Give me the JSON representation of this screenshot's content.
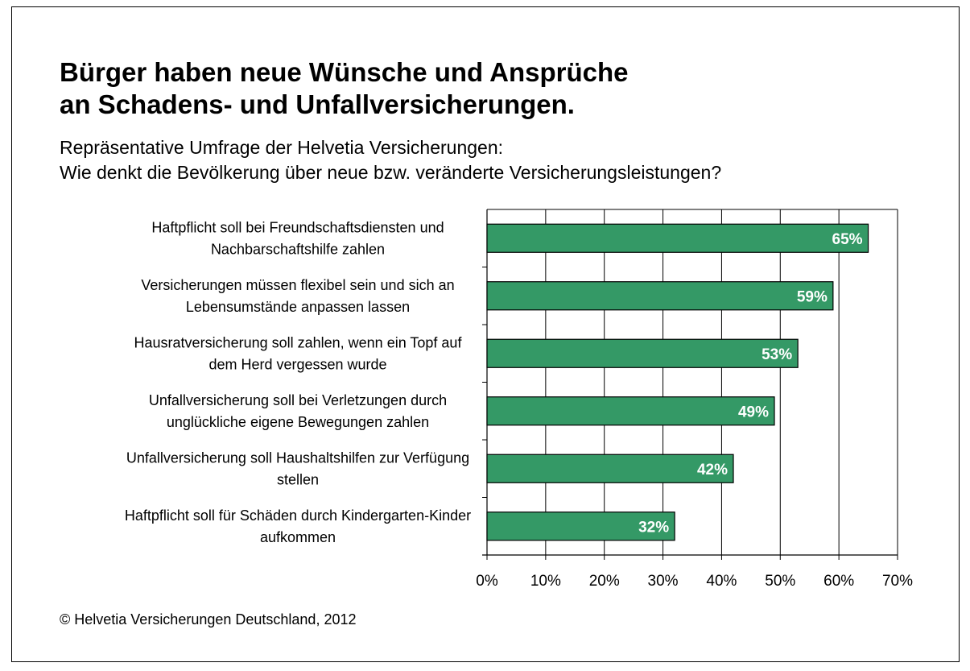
{
  "chart_data": {
    "type": "bar",
    "orientation": "horizontal",
    "title_lines": [
      "Bürger haben neue Wünsche und Ansprüche",
      "an Schadens- und Unfallversicherungen."
    ],
    "subtitle_lines": [
      "Repräsentative Umfrage der Helvetia Versicherungen:",
      "Wie denkt die Bevölkerung über neue bzw. veränderte Versicherungsleistungen?"
    ],
    "categories": [
      [
        "Haftpflicht soll bei Freundschaftsdiensten und",
        "Nachbarschaftshilfe zahlen"
      ],
      [
        "Versicherungen müssen flexibel sein und sich an",
        "Lebensumstände anpassen lassen"
      ],
      [
        "Hausratversicherung soll zahlen, wenn ein Topf auf",
        "dem Herd vergessen wurde"
      ],
      [
        "Unfallversicherung soll bei Verletzungen durch",
        "unglückliche eigene Bewegungen zahlen"
      ],
      [
        "Unfallversicherung soll Haushaltshilfen zur Verfügung",
        "stellen"
      ],
      [
        "Haftpflicht soll für Schäden durch Kindergarten-Kinder",
        "aufkommen"
      ]
    ],
    "values": [
      65,
      59,
      53,
      49,
      42,
      32
    ],
    "value_labels": [
      "65%",
      "59%",
      "53%",
      "49%",
      "42%",
      "32%"
    ],
    "xlim": [
      0,
      70
    ],
    "xticks": [
      0,
      10,
      20,
      30,
      40,
      50,
      60,
      70
    ],
    "xtick_labels": [
      "0%",
      "10%",
      "20%",
      "30%",
      "40%",
      "50%",
      "60%",
      "70%"
    ],
    "xlabel": "",
    "ylabel": "",
    "grid": true,
    "legend": "none",
    "bar_color": "#349966",
    "source": "© Helvetia Versicherungen Deutschland, 2012"
  }
}
